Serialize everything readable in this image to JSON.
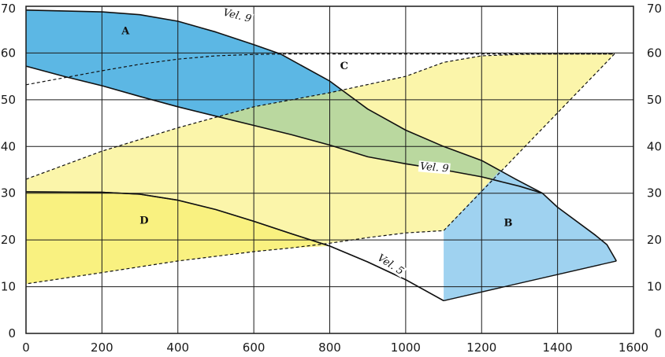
{
  "chart_data": {
    "type": "area",
    "title": "",
    "xlabel": "",
    "ylabel": "",
    "xlim": [
      0,
      1600
    ],
    "ylim": [
      0,
      70
    ],
    "x_ticks": [
      0,
      200,
      400,
      600,
      800,
      1000,
      1200,
      1400,
      1600
    ],
    "y_ticks": [
      0,
      10,
      20,
      30,
      40,
      50,
      60,
      70
    ],
    "grid": true,
    "regions": [
      {
        "name": "A",
        "color": "#3faadf",
        "opacity": 0.85,
        "boundary": [
          [
            0,
            69.2
          ],
          [
            200,
            68.8
          ],
          [
            300,
            68.2
          ],
          [
            400,
            66.8
          ],
          [
            500,
            64.5
          ],
          [
            600,
            61.8
          ],
          [
            670,
            59.8
          ],
          [
            800,
            54
          ],
          [
            900,
            48
          ],
          [
            1000,
            43.5
          ],
          [
            1100,
            40
          ],
          [
            1200,
            37
          ],
          [
            1290,
            33
          ],
          [
            1360,
            30
          ],
          [
            1300,
            31.5
          ],
          [
            1200,
            33.5
          ],
          [
            1100,
            35
          ],
          [
            1000,
            36.3
          ],
          [
            900,
            37.8
          ],
          [
            800,
            40.3
          ],
          [
            700,
            42.5
          ],
          [
            600,
            44.5
          ],
          [
            500,
            46.5
          ],
          [
            400,
            48.5
          ],
          [
            300,
            50.7
          ],
          [
            200,
            53
          ],
          [
            100,
            55
          ],
          [
            0,
            57.2
          ]
        ],
        "label": "A",
        "label_at": [
          262,
          64
        ]
      },
      {
        "name": "C",
        "color": "#f8ef72",
        "opacity": 0.6,
        "boundary": [
          [
            0,
            33
          ],
          [
            100,
            36
          ],
          [
            200,
            39
          ],
          [
            400,
            44
          ],
          [
            600,
            48.5
          ],
          [
            800,
            51.5
          ],
          [
            1000,
            55
          ],
          [
            1100,
            58
          ],
          [
            1200,
            59.4
          ],
          [
            1300,
            59.7
          ],
          [
            1400,
            59.8
          ],
          [
            1550,
            59.8
          ],
          [
            1100,
            22
          ],
          [
            1000,
            21.5
          ],
          [
            900,
            20.5
          ],
          [
            800,
            19.3
          ],
          [
            700,
            18.3
          ],
          [
            600,
            17.5
          ],
          [
            400,
            15.5
          ],
          [
            200,
            13
          ],
          [
            0,
            10.6
          ]
        ],
        "label": "C",
        "label_at": [
          838,
          56.5
        ]
      },
      {
        "name": "B",
        "color": "#9fd2f0",
        "opacity": 1,
        "boundary": [
          [
            1100,
            22
          ],
          [
            1250,
            35
          ],
          [
            1290,
            33
          ],
          [
            1360,
            30
          ],
          [
            1400,
            27
          ],
          [
            1500,
            21
          ],
          [
            1530,
            19
          ],
          [
            1555,
            15.5
          ],
          [
            1100,
            7
          ]
        ],
        "label": "B",
        "label_at": [
          1270,
          23
        ]
      },
      {
        "name": "D",
        "color": "#f8ef72",
        "opacity": 0.75,
        "boundary": [
          [
            0,
            30.3
          ],
          [
            200,
            30.2
          ],
          [
            300,
            29.8
          ],
          [
            400,
            28.5
          ],
          [
            500,
            26.5
          ],
          [
            600,
            24
          ],
          [
            700,
            21.3
          ],
          [
            800,
            18.7
          ],
          [
            700,
            18.3
          ],
          [
            600,
            17.5
          ],
          [
            400,
            15.5
          ],
          [
            200,
            13
          ],
          [
            0,
            10.6
          ]
        ],
        "label": "D",
        "label_at": [
          311,
          23.5
        ]
      }
    ],
    "dashed_lines": [
      [
        [
          0,
          53.2
        ],
        [
          100,
          54.7
        ],
        [
          200,
          56.2
        ],
        [
          300,
          57.6
        ],
        [
          400,
          58.7
        ],
        [
          500,
          59.4
        ],
        [
          600,
          59.7
        ],
        [
          700,
          59.8
        ],
        [
          1550,
          59.8
        ]
      ],
      [
        [
          0,
          33
        ],
        [
          100,
          36
        ],
        [
          200,
          39
        ],
        [
          400,
          44
        ],
        [
          600,
          48.5
        ],
        [
          800,
          51.5
        ],
        [
          1000,
          55
        ],
        [
          1100,
          58
        ],
        [
          1200,
          59.4
        ],
        [
          1300,
          59.7
        ],
        [
          1400,
          59.8
        ],
        [
          1550,
          59.8
        ]
      ],
      [
        [
          1550,
          59.8
        ],
        [
          1100,
          22
        ],
        [
          1000,
          21.5
        ],
        [
          900,
          20.5
        ],
        [
          800,
          19.3
        ],
        [
          700,
          18.3
        ],
        [
          600,
          17.5
        ],
        [
          400,
          15.5
        ],
        [
          200,
          13
        ],
        [
          0,
          10.6
        ]
      ]
    ],
    "solid_lines": [
      [
        [
          1100,
          7
        ],
        [
          1555,
          15.5
        ]
      ],
      [
        [
          0,
          30.3
        ],
        [
          200,
          30.2
        ],
        [
          300,
          29.8
        ],
        [
          400,
          28.5
        ],
        [
          500,
          26.5
        ],
        [
          600,
          24
        ],
        [
          700,
          21.3
        ],
        [
          800,
          18.7
        ],
        [
          900,
          15.3
        ],
        [
          1000,
          11.5
        ],
        [
          1100,
          7
        ]
      ]
    ],
    "curves": [
      {
        "name": "Vel. 9",
        "points": [
          [
            0,
            69.2
          ],
          [
            200,
            68.8
          ],
          [
            300,
            68.2
          ],
          [
            400,
            66.8
          ],
          [
            500,
            64.5
          ],
          [
            600,
            61.8
          ],
          [
            670,
            59.8
          ],
          [
            800,
            54
          ],
          [
            900,
            48
          ],
          [
            1000,
            43.5
          ],
          [
            1100,
            40
          ],
          [
            1200,
            37
          ],
          [
            1290,
            33
          ],
          [
            1360,
            30
          ],
          [
            1400,
            27
          ],
          [
            1500,
            21
          ],
          [
            1530,
            19
          ],
          [
            1555,
            15.5
          ]
        ],
        "label": "Vel. 9",
        "label_at": [
          555,
          67.5
        ],
        "label_rotate": 14
      },
      {
        "name": "Vel. 9",
        "points": [
          [
            0,
            57.2
          ],
          [
            100,
            55
          ],
          [
            200,
            53
          ],
          [
            300,
            50.7
          ],
          [
            400,
            48.5
          ],
          [
            500,
            46.5
          ],
          [
            600,
            44.5
          ],
          [
            700,
            42.5
          ],
          [
            800,
            40.3
          ],
          [
            900,
            37.8
          ],
          [
            1000,
            36.3
          ],
          [
            1100,
            35
          ],
          [
            1200,
            33.5
          ],
          [
            1300,
            31.5
          ],
          [
            1360,
            30
          ]
        ],
        "label": "Vel. 9",
        "label_at": [
          1075,
          35
        ],
        "label_rotate": 5
      },
      {
        "name": "Vel. 5",
        "points": [
          [
            0,
            30.3
          ],
          [
            200,
            30.2
          ],
          [
            300,
            29.8
          ],
          [
            400,
            28.5
          ],
          [
            500,
            26.5
          ],
          [
            600,
            24
          ],
          [
            700,
            21.3
          ],
          [
            800,
            18.7
          ],
          [
            900,
            15.3
          ],
          [
            1000,
            11.5
          ],
          [
            1100,
            7
          ]
        ],
        "label": "Vel. 5",
        "label_at": [
          957,
          14.3
        ],
        "label_rotate": 33
      }
    ]
  }
}
